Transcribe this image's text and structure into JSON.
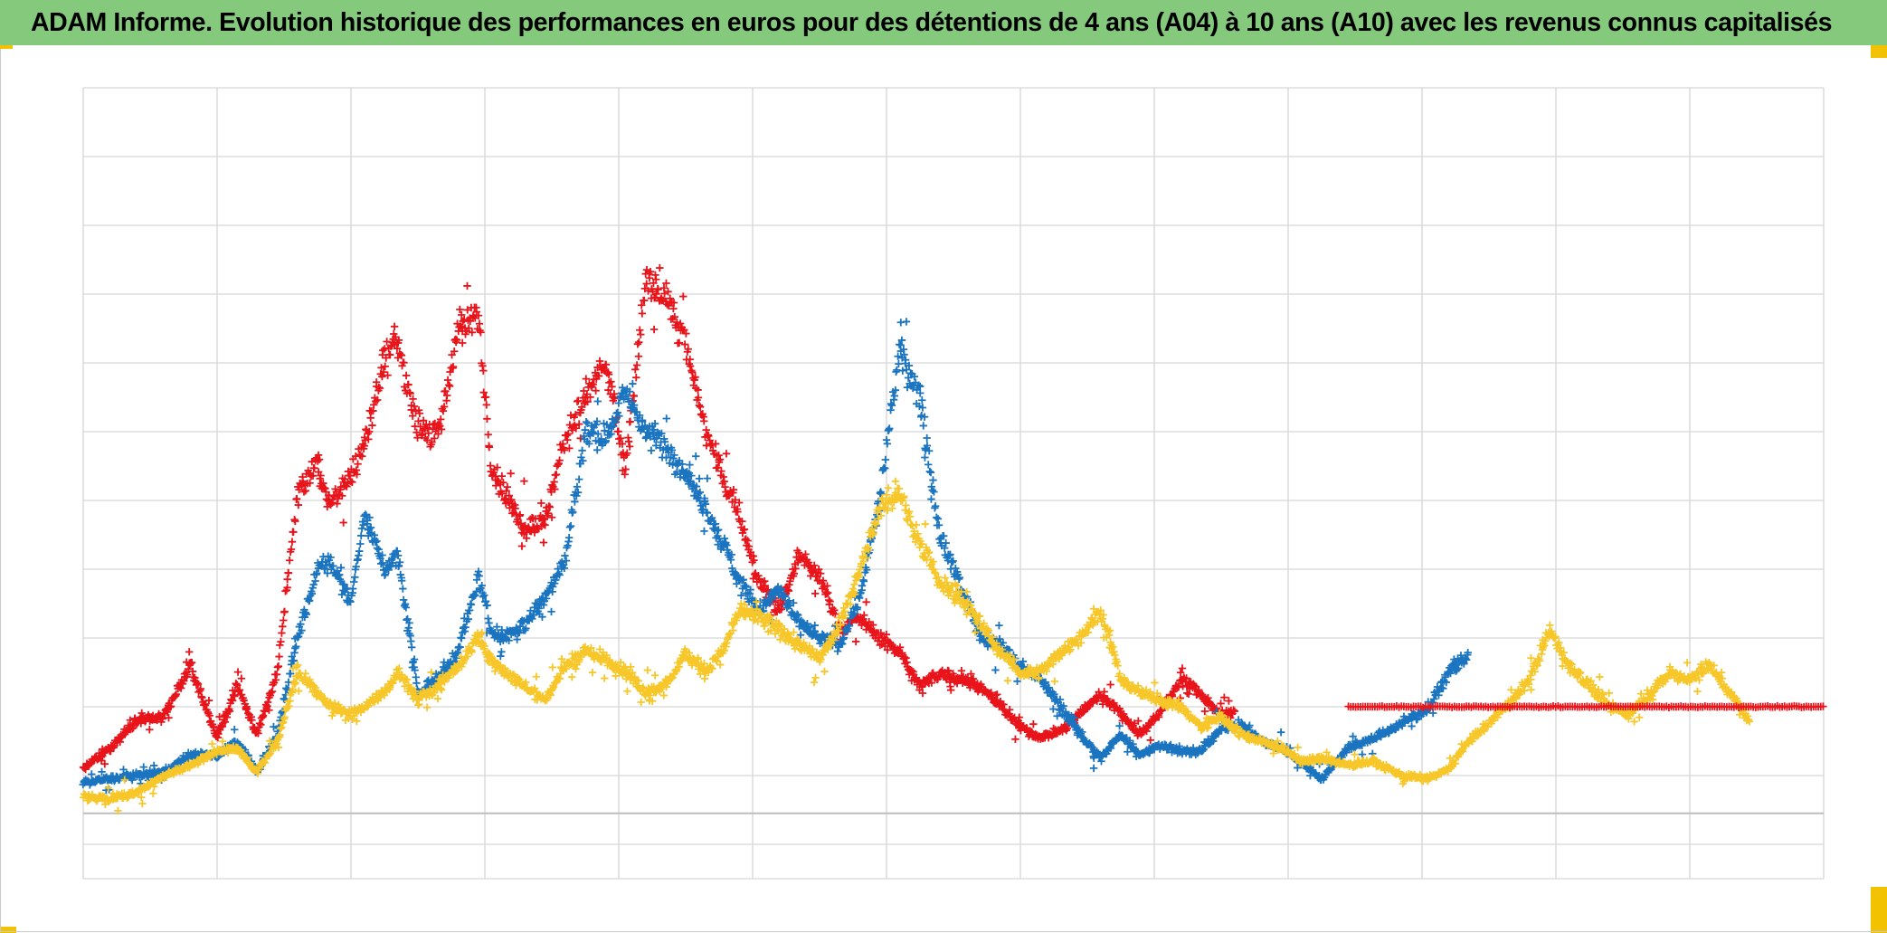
{
  "title": "ADAM Informe. Evolution historique des performances en euros pour des détentions de 4 ans (A04) à 10 ans (A10) avec les revenus connus capitalisés",
  "colors": {
    "title_bg": "#84c97c",
    "accent_corner": "#f2c200",
    "grid": "#d6d6d6",
    "zero_line": "#bdbdbd"
  },
  "chart_data": {
    "type": "scatter",
    "marker": "plus",
    "grid": true,
    "xlim": [
      0,
      13
    ],
    "ylim": [
      -1.5,
      10
    ],
    "x_gridlines": [
      0,
      1,
      2,
      3,
      4,
      5,
      6,
      7,
      8,
      9,
      10,
      11,
      12,
      13
    ],
    "y_gridlines": [
      -1.5,
      -1,
      0,
      1,
      2,
      3,
      4,
      5,
      6,
      7,
      8,
      9,
      10
    ],
    "zero_line": -0.55,
    "series": [
      {
        "color": "#e8141b",
        "x": [
          0,
          0.2,
          0.4,
          0.6,
          0.8,
          1.0,
          1.15,
          1.3,
          1.45,
          1.6,
          1.75,
          1.85,
          2.0,
          2.1,
          2.25,
          2.35,
          2.5,
          2.65,
          2.8,
          2.95,
          3.05,
          3.15,
          3.3,
          3.45,
          3.6,
          3.75,
          3.9,
          4.05,
          4.2,
          4.35,
          4.5,
          4.65,
          4.8,
          4.9,
          5.05,
          5.2,
          5.35,
          5.5,
          5.65,
          5.8,
          5.95,
          6.1,
          6.25,
          6.4,
          6.55,
          6.7,
          6.85,
          7.0,
          7.15,
          7.3,
          7.45,
          7.6,
          7.75,
          7.9,
          8.05,
          8.2,
          8.35,
          8.5,
          8.6
        ],
        "y": [
          0.1,
          0.4,
          0.8,
          0.85,
          1.6,
          0.55,
          1.3,
          0.6,
          1.5,
          4.1,
          4.5,
          3.9,
          4.4,
          4.8,
          6.0,
          6.3,
          5.1,
          4.9,
          6.5,
          6.7,
          4.5,
          4.1,
          3.6,
          3.7,
          4.9,
          5.5,
          6.0,
          4.5,
          7.2,
          7.0,
          6.3,
          5.0,
          4.2,
          3.8,
          2.8,
          2.4,
          3.2,
          2.9,
          2.1,
          2.3,
          2.0,
          1.8,
          1.3,
          1.5,
          1.4,
          1.3,
          1.0,
          0.7,
          0.55,
          0.65,
          0.9,
          1.2,
          0.9,
          0.6,
          0.95,
          1.4,
          1.2,
          0.85,
          0.95
        ]
      },
      {
        "color": "#1a74c0",
        "x": [
          0,
          0.2,
          0.4,
          0.6,
          0.8,
          1.0,
          1.15,
          1.3,
          1.45,
          1.6,
          1.75,
          1.85,
          2.0,
          2.1,
          2.25,
          2.35,
          2.5,
          2.65,
          2.8,
          2.95,
          3.05,
          3.15,
          3.3,
          3.45,
          3.6,
          3.75,
          3.9,
          4.05,
          4.2,
          4.35,
          4.5,
          4.65,
          4.8,
          4.9,
          5.05,
          5.2,
          5.35,
          5.5,
          5.65,
          5.8,
          5.95,
          6.1,
          6.25,
          6.4,
          6.55,
          6.7,
          6.85,
          7.0,
          7.15,
          7.3,
          7.45,
          7.6,
          7.75,
          7.9,
          8.05,
          8.2,
          8.35,
          8.5,
          8.65,
          8.8,
          8.95,
          9.1,
          9.25,
          9.45,
          9.65,
          9.85,
          10.05,
          10.2,
          10.35
        ],
        "y": [
          -0.1,
          -0.05,
          0.0,
          0.05,
          0.3,
          0.3,
          0.5,
          0.05,
          0.6,
          2.0,
          3.0,
          3.1,
          2.5,
          3.8,
          3.0,
          3.2,
          1.2,
          1.4,
          1.8,
          2.9,
          2.1,
          2.0,
          2.2,
          2.6,
          3.1,
          5.0,
          4.9,
          5.6,
          5.0,
          4.8,
          4.4,
          3.9,
          3.3,
          2.8,
          2.4,
          2.7,
          2.2,
          2.0,
          1.9,
          2.6,
          4.0,
          6.2,
          5.5,
          3.5,
          2.8,
          2.0,
          1.9,
          1.6,
          1.4,
          1.0,
          0.6,
          0.25,
          0.6,
          0.3,
          0.45,
          0.35,
          0.35,
          0.7,
          0.75,
          0.5,
          0.4,
          0.2,
          -0.05,
          0.4,
          0.55,
          0.75,
          1.0,
          1.5,
          1.8
        ]
      },
      {
        "color": "#f7c72a",
        "x": [
          0,
          0.2,
          0.4,
          0.6,
          0.8,
          1.0,
          1.15,
          1.3,
          1.45,
          1.6,
          1.75,
          1.85,
          2.0,
          2.1,
          2.25,
          2.35,
          2.5,
          2.65,
          2.8,
          2.95,
          3.05,
          3.15,
          3.3,
          3.45,
          3.6,
          3.75,
          3.9,
          4.05,
          4.2,
          4.35,
          4.5,
          4.65,
          4.8,
          4.9,
          5.05,
          5.2,
          5.35,
          5.5,
          5.65,
          5.8,
          5.95,
          6.1,
          6.25,
          6.4,
          6.55,
          6.7,
          6.85,
          7.0,
          7.15,
          7.3,
          7.45,
          7.6,
          7.75,
          7.9,
          8.05,
          8.2,
          8.35,
          8.5,
          8.65,
          8.8,
          8.95,
          9.1,
          9.25,
          9.45,
          9.65,
          9.85,
          10.05,
          10.2,
          10.35,
          10.5,
          10.65,
          10.8,
          10.95,
          11.1,
          11.25,
          11.4,
          11.55,
          11.7,
          11.85,
          12.0,
          12.15,
          12.3,
          12.45
        ],
        "y": [
          -0.3,
          -0.35,
          -0.25,
          0.0,
          0.15,
          0.35,
          0.4,
          0.05,
          0.5,
          1.5,
          1.2,
          1.0,
          0.9,
          1.0,
          1.2,
          1.5,
          1.1,
          1.3,
          1.6,
          2.0,
          1.7,
          1.5,
          1.3,
          1.1,
          1.6,
          1.8,
          1.7,
          1.5,
          1.2,
          1.3,
          1.8,
          1.5,
          1.9,
          2.4,
          2.3,
          2.1,
          1.9,
          1.7,
          2.2,
          3.0,
          3.9,
          4.1,
          3.4,
          2.8,
          2.6,
          2.2,
          1.8,
          1.5,
          1.5,
          1.8,
          2.0,
          2.4,
          1.4,
          1.2,
          1.1,
          1.0,
          0.7,
          0.85,
          0.6,
          0.5,
          0.4,
          0.2,
          0.25,
          0.15,
          0.2,
          0.0,
          -0.05,
          0.1,
          0.5,
          0.75,
          1.05,
          1.4,
          2.1,
          1.6,
          1.3,
          1.0,
          0.9,
          1.2,
          1.5,
          1.4,
          1.6,
          1.2,
          0.8
        ]
      },
      {
        "color": "#e8141b",
        "x": [
          9.45,
          13.0
        ],
        "y": [
          1.0,
          1.0
        ],
        "style": "flat"
      }
    ]
  }
}
